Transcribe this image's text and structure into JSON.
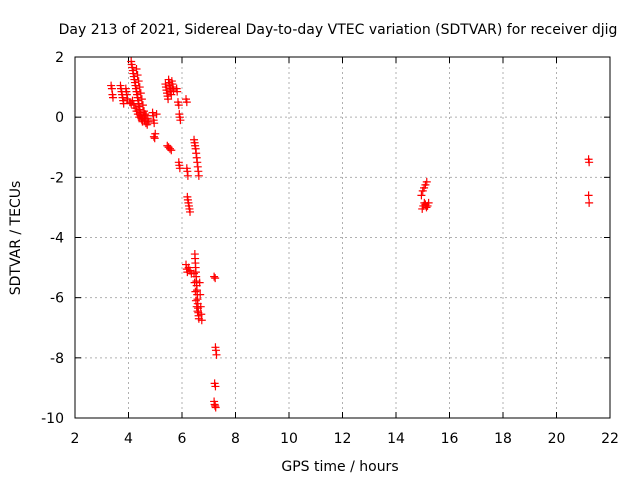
{
  "chart_data": {
    "type": "scatter",
    "title": "Day 213 of 2021, Sidereal Day-to-day VTEC variation (SDTVAR) for receiver djig",
    "xlabel": "GPS time / hours",
    "ylabel": "SDTVAR / TECUs",
    "xlim": [
      2,
      22
    ],
    "ylim": [
      -10,
      2
    ],
    "xticks": [
      2,
      4,
      6,
      8,
      10,
      12,
      14,
      16,
      18,
      20,
      22
    ],
    "yticks": [
      2,
      0,
      -2,
      -4,
      -6,
      -8,
      -10
    ],
    "grid": true,
    "marker": "plus",
    "color": "#ff0000",
    "series": [
      {
        "name": "SDTVAR",
        "points": [
          [
            3.35,
            1.05
          ],
          [
            3.38,
            0.95
          ],
          [
            3.4,
            0.75
          ],
          [
            3.42,
            0.65
          ],
          [
            3.7,
            1.05
          ],
          [
            3.72,
            0.95
          ],
          [
            3.74,
            0.85
          ],
          [
            3.76,
            0.75
          ],
          [
            3.78,
            0.65
          ],
          [
            3.8,
            0.55
          ],
          [
            3.82,
            0.45
          ],
          [
            3.9,
            0.95
          ],
          [
            3.92,
            0.85
          ],
          [
            3.94,
            0.75
          ],
          [
            3.96,
            0.6
          ],
          [
            4.1,
            1.85
          ],
          [
            4.12,
            1.75
          ],
          [
            4.14,
            1.65
          ],
          [
            4.16,
            1.55
          ],
          [
            4.18,
            1.45
          ],
          [
            4.2,
            1.35
          ],
          [
            4.22,
            1.25
          ],
          [
            4.24,
            1.15
          ],
          [
            4.26,
            1.05
          ],
          [
            4.28,
            0.95
          ],
          [
            4.3,
            0.85
          ],
          [
            4.32,
            0.75
          ],
          [
            4.34,
            0.65
          ],
          [
            4.36,
            0.55
          ],
          [
            4.38,
            0.45
          ],
          [
            4.4,
            0.35
          ],
          [
            4.42,
            0.25
          ],
          [
            4.44,
            0.15
          ],
          [
            4.46,
            0.05
          ],
          [
            4.48,
            -0.05
          ],
          [
            4.5,
            -0.1
          ],
          [
            4.52,
            -0.15
          ],
          [
            4.05,
            0.5
          ],
          [
            4.1,
            0.45
          ],
          [
            4.15,
            0.55
          ],
          [
            4.2,
            0.4
          ],
          [
            4.25,
            0.3
          ],
          [
            4.3,
            0.2
          ],
          [
            4.35,
            0.1
          ],
          [
            4.4,
            0.0
          ],
          [
            4.45,
            0.05
          ],
          [
            4.5,
            -0.05
          ],
          [
            4.55,
            0.0
          ],
          [
            4.6,
            -0.1
          ],
          [
            4.65,
            -0.2
          ],
          [
            4.7,
            -0.25
          ],
          [
            4.3,
            1.6
          ],
          [
            4.34,
            1.4
          ],
          [
            4.38,
            1.2
          ],
          [
            4.42,
            1.0
          ],
          [
            4.46,
            0.8
          ],
          [
            4.5,
            0.6
          ],
          [
            4.54,
            0.4
          ],
          [
            4.58,
            0.2
          ],
          [
            4.62,
            0.1
          ],
          [
            4.66,
            0.05
          ],
          [
            4.72,
            -0.05
          ],
          [
            4.76,
            -0.15
          ],
          [
            4.9,
            0.15
          ],
          [
            4.92,
            0.05
          ],
          [
            4.94,
            -0.1
          ],
          [
            4.96,
            -0.2
          ],
          [
            4.95,
            -0.65
          ],
          [
            4.98,
            -0.7
          ],
          [
            5.05,
            0.1
          ],
          [
            5.0,
            -0.55
          ],
          [
            5.38,
            1.1
          ],
          [
            5.4,
            1.0
          ],
          [
            5.42,
            0.9
          ],
          [
            5.44,
            0.8
          ],
          [
            5.46,
            0.7
          ],
          [
            5.48,
            0.6
          ],
          [
            5.5,
            1.25
          ],
          [
            5.52,
            1.15
          ],
          [
            5.54,
            1.05
          ],
          [
            5.56,
            0.95
          ],
          [
            5.58,
            0.85
          ],
          [
            5.6,
            0.75
          ],
          [
            5.62,
            1.2
          ],
          [
            5.64,
            1.1
          ],
          [
            5.66,
            1.0
          ],
          [
            5.68,
            0.9
          ],
          [
            5.45,
            -0.95
          ],
          [
            5.5,
            -1.0
          ],
          [
            5.55,
            -1.05
          ],
          [
            5.6,
            -1.1
          ],
          [
            5.8,
            0.95
          ],
          [
            5.82,
            0.85
          ],
          [
            5.85,
            0.5
          ],
          [
            5.88,
            0.4
          ],
          [
            5.9,
            0.1
          ],
          [
            5.92,
            0.0
          ],
          [
            5.94,
            -0.1
          ],
          [
            5.88,
            -1.5
          ],
          [
            5.9,
            -1.6
          ],
          [
            5.92,
            -1.7
          ],
          [
            6.15,
            0.6
          ],
          [
            6.18,
            0.5
          ],
          [
            6.18,
            -1.7
          ],
          [
            6.2,
            -1.8
          ],
          [
            6.22,
            -1.95
          ],
          [
            6.2,
            -2.65
          ],
          [
            6.22,
            -2.75
          ],
          [
            6.24,
            -2.85
          ],
          [
            6.26,
            -2.95
          ],
          [
            6.28,
            -3.05
          ],
          [
            6.3,
            -3.15
          ],
          [
            6.45,
            -0.75
          ],
          [
            6.47,
            -0.85
          ],
          [
            6.49,
            -0.95
          ],
          [
            6.51,
            -1.05
          ],
          [
            6.53,
            -1.2
          ],
          [
            6.55,
            -1.35
          ],
          [
            6.57,
            -1.5
          ],
          [
            6.59,
            -1.65
          ],
          [
            6.61,
            -1.8
          ],
          [
            6.63,
            -1.95
          ],
          [
            6.15,
            -4.9
          ],
          [
            6.18,
            -5.05
          ],
          [
            6.2,
            -5.15
          ],
          [
            6.25,
            -5.0
          ],
          [
            6.3,
            -5.1
          ],
          [
            6.35,
            -5.2
          ],
          [
            6.48,
            -4.55
          ],
          [
            6.49,
            -4.7
          ],
          [
            6.5,
            -4.85
          ],
          [
            6.51,
            -5.0
          ],
          [
            6.52,
            -5.15
          ],
          [
            6.53,
            -5.3
          ],
          [
            6.54,
            -5.45
          ],
          [
            6.55,
            -5.6
          ],
          [
            6.56,
            -5.75
          ],
          [
            6.57,
            -5.9
          ],
          [
            6.58,
            -6.05
          ],
          [
            6.59,
            -6.2
          ],
          [
            6.6,
            -6.35
          ],
          [
            6.61,
            -6.5
          ],
          [
            6.62,
            -6.6
          ],
          [
            6.63,
            -6.7
          ],
          [
            6.45,
            -5.2
          ],
          [
            6.47,
            -5.5
          ],
          [
            6.5,
            -5.8
          ],
          [
            6.52,
            -6.1
          ],
          [
            6.55,
            -6.3
          ],
          [
            6.58,
            -6.45
          ],
          [
            6.66,
            -5.5
          ],
          [
            6.68,
            -5.9
          ],
          [
            6.7,
            -6.3
          ],
          [
            6.72,
            -6.55
          ],
          [
            6.74,
            -6.75
          ],
          [
            7.2,
            -5.3
          ],
          [
            7.24,
            -5.35
          ],
          [
            7.25,
            -7.65
          ],
          [
            7.27,
            -7.75
          ],
          [
            7.29,
            -7.9
          ],
          [
            7.22,
            -8.85
          ],
          [
            7.25,
            -8.95
          ],
          [
            7.2,
            -9.45
          ],
          [
            7.22,
            -9.55
          ],
          [
            7.24,
            -9.6
          ],
          [
            7.26,
            -9.65
          ],
          [
            14.95,
            -2.6
          ],
          [
            15.0,
            -2.45
          ],
          [
            15.05,
            -2.35
          ],
          [
            15.1,
            -2.25
          ],
          [
            15.15,
            -2.15
          ],
          [
            14.98,
            -3.05
          ],
          [
            15.02,
            -2.95
          ],
          [
            15.06,
            -2.85
          ],
          [
            15.1,
            -2.9
          ],
          [
            15.14,
            -3.0
          ],
          [
            15.18,
            -2.95
          ],
          [
            15.22,
            -2.85
          ],
          [
            21.2,
            -1.4
          ],
          [
            21.22,
            -1.5
          ],
          [
            21.2,
            -2.6
          ],
          [
            21.22,
            -2.85
          ]
        ]
      }
    ]
  }
}
